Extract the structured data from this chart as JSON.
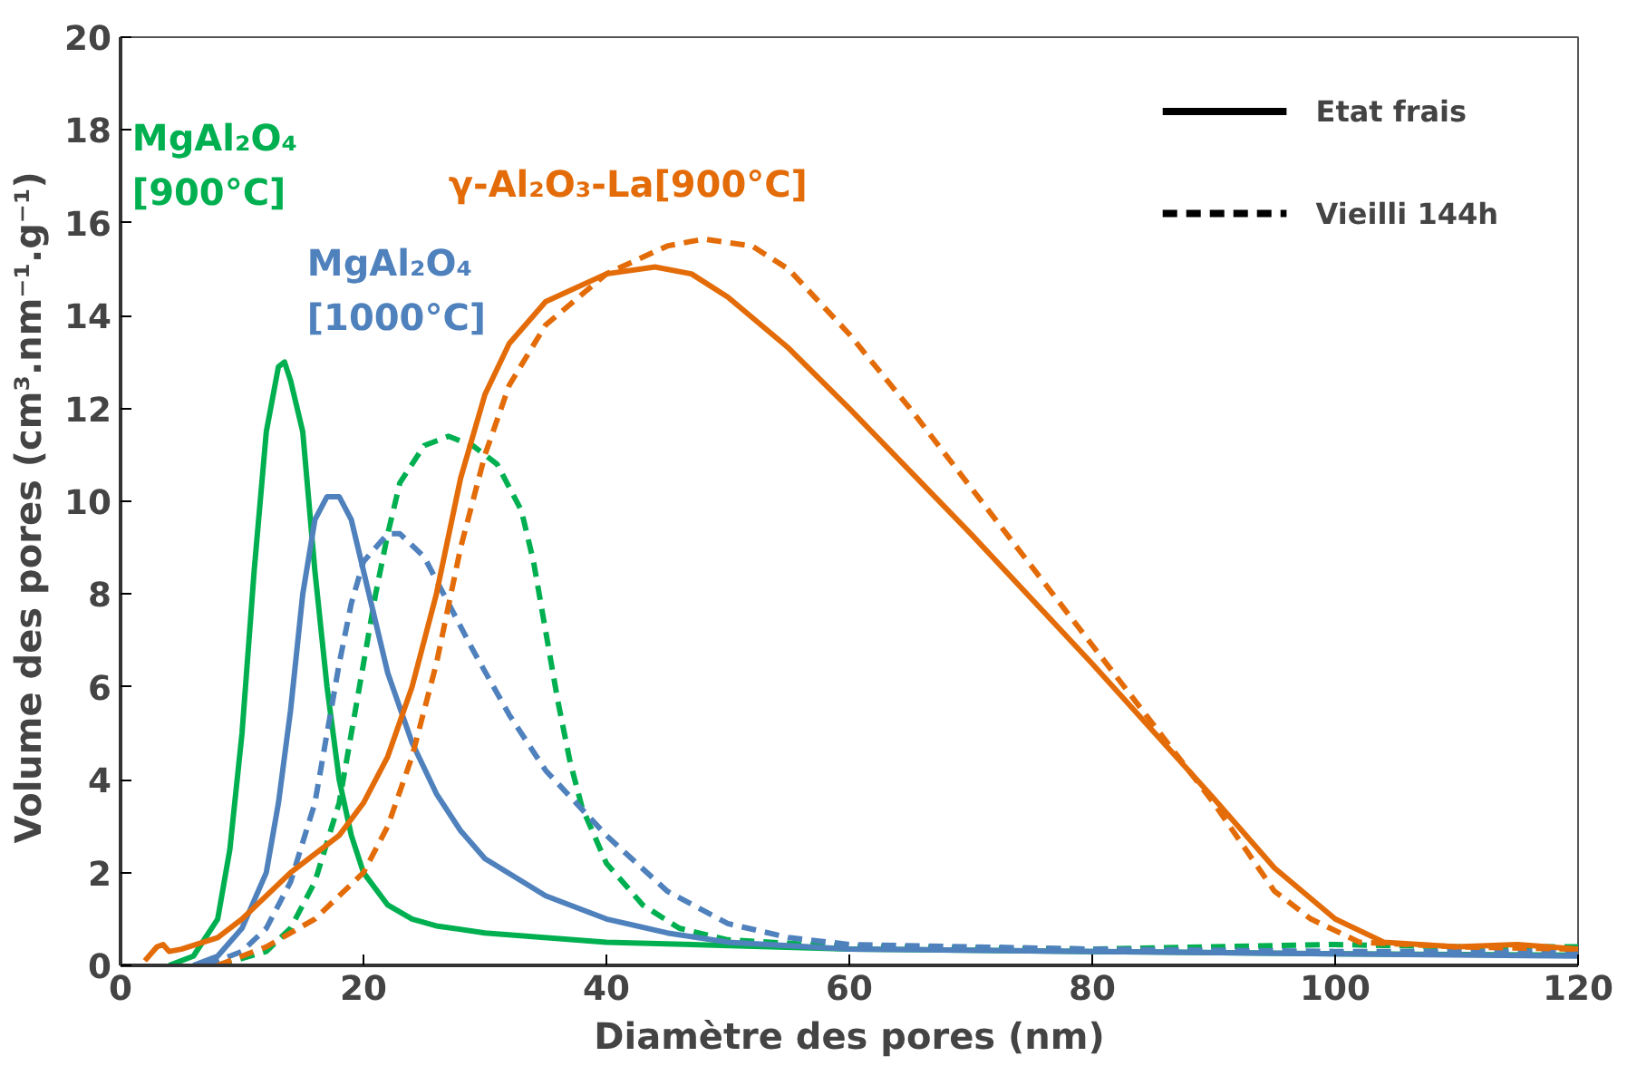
{
  "chart_data": {
    "type": "line",
    "xlabel": "Diamètre des pores (nm)",
    "ylabel": "Volume des pores  (cm³.nm⁻¹.g⁻¹)",
    "xlim": [
      0,
      120
    ],
    "ylim": [
      0,
      20
    ],
    "xticks": [
      0,
      20,
      40,
      60,
      80,
      100,
      120
    ],
    "yticks": [
      0,
      2,
      4,
      6,
      8,
      10,
      12,
      14,
      16,
      18,
      20
    ],
    "grid": false,
    "series": [
      {
        "color": "#00b050",
        "line_style": "solid",
        "x": [
          4,
          6,
          8,
          9,
          10,
          11,
          12,
          13,
          13.5,
          14,
          15,
          16,
          17,
          18,
          19,
          20,
          22,
          24,
          26,
          30,
          40,
          60,
          80,
          100,
          120
        ],
        "values": [
          0,
          0.2,
          1,
          2.5,
          5,
          8.5,
          11.5,
          12.9,
          13,
          12.6,
          11.5,
          8.5,
          6,
          4,
          2.8,
          2,
          1.3,
          1,
          0.85,
          0.7,
          0.5,
          0.35,
          0.3,
          0.25,
          0.22
        ]
      },
      {
        "color": "#00b050",
        "line_style": "dashed",
        "x": [
          8,
          12,
          14,
          16,
          18,
          19,
          20,
          21,
          22,
          23,
          25,
          27,
          29,
          31,
          33,
          34,
          35,
          36,
          37,
          38,
          40,
          43,
          46,
          50,
          60,
          80,
          100,
          110,
          120
        ],
        "values": [
          0,
          0.3,
          0.8,
          1.8,
          3.5,
          5,
          6.5,
          8,
          9.3,
          10.4,
          11.2,
          11.4,
          11.2,
          10.8,
          9.8,
          8.7,
          7.2,
          5.7,
          4.4,
          3.4,
          2.2,
          1.3,
          0.8,
          0.55,
          0.4,
          0.35,
          0.45,
          0.4,
          0.4
        ]
      },
      {
        "color": "#4f81bd",
        "line_style": "solid",
        "x": [
          6,
          8,
          10,
          12,
          13,
          14,
          15,
          16,
          17,
          18,
          19,
          20,
          22,
          24,
          26,
          28,
          30,
          35,
          40,
          45,
          50,
          60,
          80,
          100,
          120
        ],
        "values": [
          0,
          0.2,
          0.8,
          2,
          3.5,
          5.5,
          8,
          9.6,
          10.1,
          10.1,
          9.6,
          8.5,
          6.3,
          4.8,
          3.7,
          2.9,
          2.3,
          1.5,
          1,
          0.7,
          0.5,
          0.35,
          0.3,
          0.25,
          0.2
        ]
      },
      {
        "color": "#4f81bd",
        "line_style": "dashed",
        "x": [
          7,
          10,
          12,
          14,
          16,
          17,
          18,
          19,
          20,
          22,
          23,
          25,
          27,
          29,
          32,
          35,
          40,
          45,
          50,
          55,
          60,
          80,
          100,
          120
        ],
        "values": [
          0,
          0.3,
          0.8,
          1.8,
          3.5,
          5,
          6.5,
          7.8,
          8.7,
          9.3,
          9.3,
          8.8,
          7.8,
          6.8,
          5.4,
          4.2,
          2.8,
          1.6,
          0.9,
          0.6,
          0.45,
          0.35,
          0.3,
          0.3
        ]
      },
      {
        "color": "#e36c09",
        "line_style": "solid",
        "x": [
          2,
          3,
          3.5,
          4,
          5,
          8,
          10,
          14,
          18,
          20,
          22,
          24,
          26,
          28,
          30,
          32,
          35,
          40,
          44,
          47,
          50,
          55,
          60,
          70,
          80,
          90,
          95,
          100,
          104,
          110,
          115,
          120
        ],
        "values": [
          0.1,
          0.4,
          0.45,
          0.3,
          0.35,
          0.6,
          1,
          2,
          2.8,
          3.5,
          4.5,
          6,
          8,
          10.5,
          12.3,
          13.4,
          14.3,
          14.9,
          15.05,
          14.9,
          14.4,
          13.3,
          12,
          9.3,
          6.5,
          3.6,
          2.1,
          1,
          0.5,
          0.4,
          0.45,
          0.35
        ]
      },
      {
        "color": "#e36c09",
        "line_style": "dashed",
        "x": [
          8,
          12,
          16,
          20,
          22,
          24,
          26,
          28,
          30,
          32,
          35,
          40,
          45,
          48,
          52,
          55,
          60,
          65,
          70,
          80,
          85,
          90,
          95,
          98,
          102,
          110,
          120
        ],
        "values": [
          0,
          0.4,
          1,
          2,
          3,
          4.5,
          6.5,
          9,
          11,
          12.5,
          13.8,
          14.9,
          15.5,
          15.65,
          15.5,
          15,
          13.6,
          12,
          10.3,
          6.9,
          5.2,
          3.5,
          1.6,
          1,
          0.5,
          0.4,
          0.35
        ]
      }
    ],
    "annotations": [
      "MgAl₂O₄\n[900°C]",
      "MgAl₂O₄\n[1000°C]",
      "γ-Al₂O₃-La[900°C]",
      "Etat frais",
      "Vieilli 144h"
    ]
  }
}
